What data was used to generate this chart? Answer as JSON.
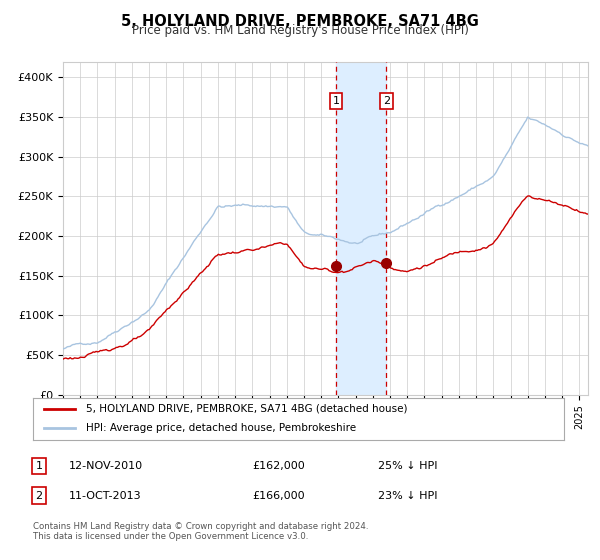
{
  "title": "5, HOLYLAND DRIVE, PEMBROKE, SA71 4BG",
  "subtitle": "Price paid vs. HM Land Registry's House Price Index (HPI)",
  "ylabel": "",
  "xlim_start": 1995.0,
  "xlim_end": 2025.5,
  "ylim_bottom": 0,
  "ylim_top": 420000,
  "yticks": [
    0,
    50000,
    100000,
    150000,
    200000,
    250000,
    300000,
    350000,
    400000
  ],
  "ytick_labels": [
    "£0",
    "£50K",
    "£100K",
    "£150K",
    "£200K",
    "£250K",
    "£300K",
    "£350K",
    "£400K"
  ],
  "sale1_date": 2010.87,
  "sale1_price": 162000,
  "sale1_label": "1",
  "sale1_text": "12-NOV-2010",
  "sale1_value_text": "£162,000",
  "sale1_pct_text": "25% ↓ HPI",
  "sale2_date": 2013.79,
  "sale2_price": 166000,
  "sale2_label": "2",
  "sale2_text": "11-OCT-2013",
  "sale2_value_text": "£166,000",
  "sale2_pct_text": "23% ↓ HPI",
  "hpi_color": "#a8c4e0",
  "sale_color": "#cc0000",
  "shading_color": "#ddeeff",
  "legend1": "5, HOLYLAND DRIVE, PEMBROKE, SA71 4BG (detached house)",
  "legend2": "HPI: Average price, detached house, Pembrokeshire",
  "footer": "Contains HM Land Registry data © Crown copyright and database right 2024.\nThis data is licensed under the Open Government Licence v3.0.",
  "background_color": "#ffffff",
  "grid_color": "#cccccc"
}
